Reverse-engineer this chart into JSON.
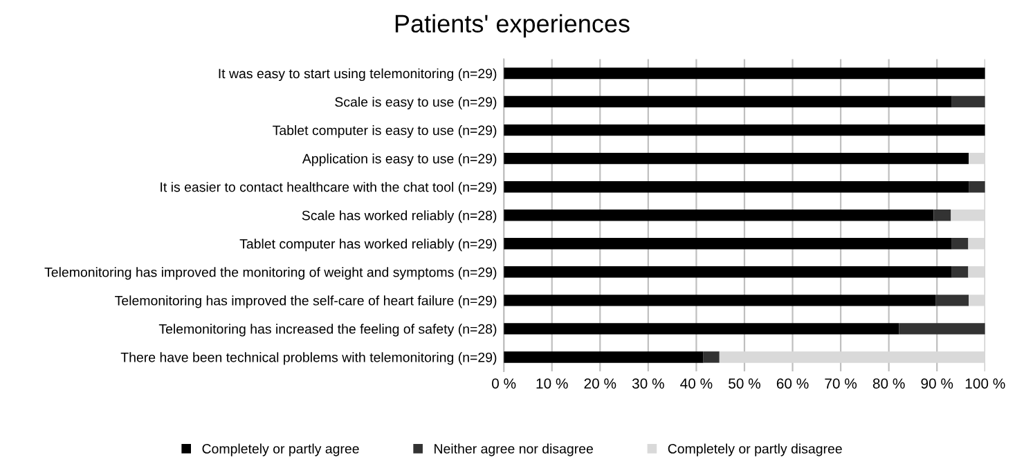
{
  "chart_data": {
    "type": "bar",
    "orientation": "horizontal",
    "stacked": true,
    "title": "Patients' experiences",
    "categories": [
      "It was easy to start using telemonitoring (n=29)",
      "Scale is easy to use (n=29)",
      "Tablet computer is easy to use (n=29)",
      "Application is easy to use (n=29)",
      "It is easier to contact healthcare with the chat tool (n=29)",
      "Scale has worked reliably (n=28)",
      "Tablet computer has worked reliably (n=29)",
      "Telemonitoring has improved the monitoring of weight and symptoms (n=29)",
      "Telemonitoring has improved the self-care of heart failure (n=29)",
      "Telemonitoring has increased the feeling of safety (n=28)",
      "There have been technical problems with telemonitoring (n=29)"
    ],
    "series": [
      {
        "name": "Completely or partly agree",
        "color": "#000000",
        "values": [
          100,
          93.1,
          100,
          96.6,
          96.6,
          89.3,
          93.1,
          93.1,
          89.7,
          82.1,
          41.4
        ]
      },
      {
        "name": "Neither agree nor disagree",
        "color": "#333333",
        "values": [
          0,
          6.9,
          0,
          0,
          3.4,
          3.6,
          3.4,
          3.4,
          6.9,
          17.9,
          3.4
        ]
      },
      {
        "name": "Completely or partly disagree",
        "color": "#d9d9d9",
        "values": [
          0,
          0,
          0,
          3.4,
          0,
          7.1,
          3.4,
          3.4,
          3.4,
          0,
          55.2
        ]
      }
    ],
    "xlim": [
      0,
      100
    ],
    "xticks": [
      {
        "value": 0,
        "label": "0 %"
      },
      {
        "value": 10,
        "label": "10 %"
      },
      {
        "value": 20,
        "label": "20 %"
      },
      {
        "value": 30,
        "label": "30 %"
      },
      {
        "value": 40,
        "label": "40 %"
      },
      {
        "value": 50,
        "label": "50 %"
      },
      {
        "value": 60,
        "label": "60 %"
      },
      {
        "value": 70,
        "label": "70 %"
      },
      {
        "value": 80,
        "label": "80 %"
      },
      {
        "value": 90,
        "label": "90 %"
      },
      {
        "value": 100,
        "label": "100 %"
      }
    ],
    "grid": "x",
    "legend": "bottom"
  }
}
